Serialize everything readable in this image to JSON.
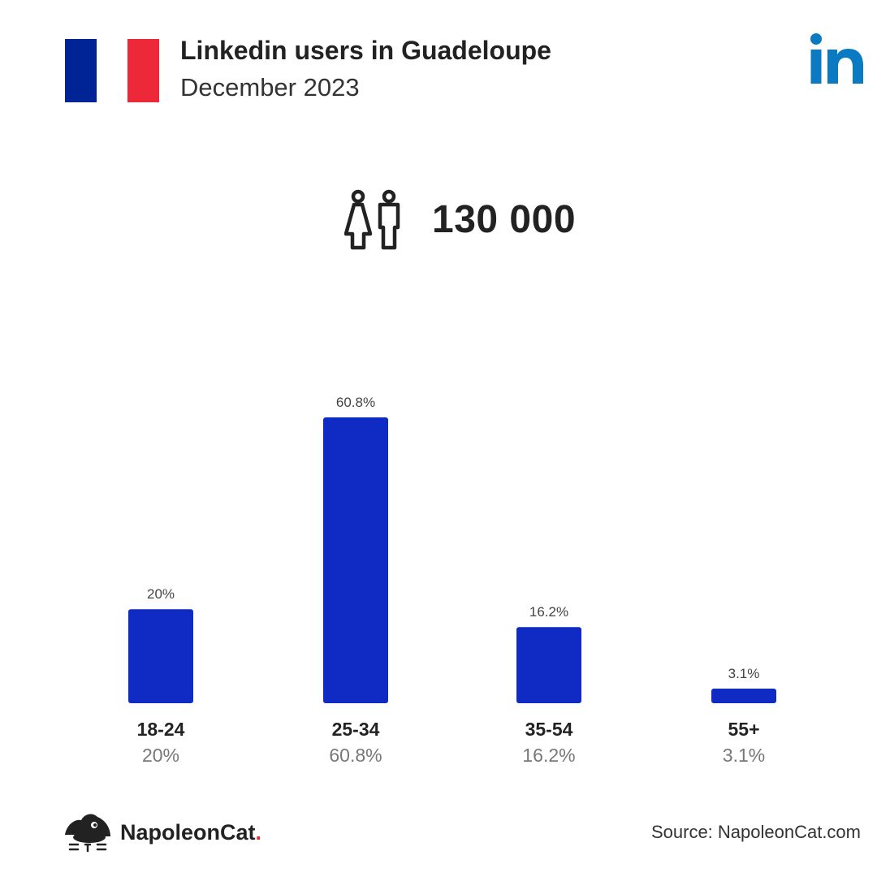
{
  "header": {
    "title": "Linkedin users in Guadeloupe",
    "subtitle": "December 2023",
    "flag_colors": [
      "#002395",
      "#ffffff",
      "#ed2939"
    ],
    "flag_icon": "france-flag-icon",
    "brand_icon": "linkedin-logo-icon",
    "brand_color": "#0a7bc2"
  },
  "total": {
    "icon": "people-icon",
    "value": "130 000"
  },
  "chart_data": {
    "type": "bar",
    "categories": [
      "18-24",
      "25-34",
      "35-54",
      "55+"
    ],
    "values": [
      20,
      60.8,
      16.2,
      3.1
    ],
    "value_labels": [
      "20%",
      "60.8%",
      "16.2%",
      "3.1%"
    ],
    "bar_color": "#0f2bc4",
    "title": "",
    "xlabel": "",
    "ylabel": "",
    "ylim": [
      0,
      60.8
    ],
    "grid": false,
    "legend": "none"
  },
  "footer": {
    "logo_icon": "napoleoncat-cat-icon",
    "brand_name": "NapoleonCat",
    "brand_dot": ".",
    "brand_dot_color": "#e8283a",
    "source": "Source: NapoleonCat.com"
  }
}
